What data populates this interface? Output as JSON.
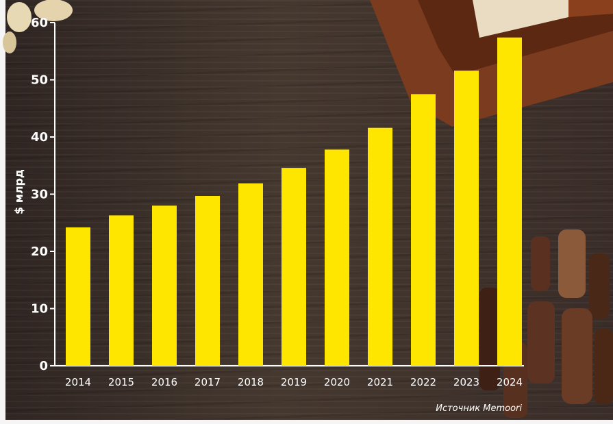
{
  "chart_data": {
    "type": "bar",
    "categories": [
      "2014",
      "2015",
      "2016",
      "2017",
      "2018",
      "2019",
      "2020",
      "2021",
      "2022",
      "2023",
      "2024"
    ],
    "values": [
      24.2,
      26.3,
      28.0,
      29.7,
      31.9,
      34.6,
      37.8,
      41.6,
      47.5,
      51.6,
      57.4
    ],
    "ylabel": "$ млрд",
    "xlabel": "",
    "ylim": [
      0,
      60
    ],
    "yticks": [
      "0",
      "10",
      "20",
      "30",
      "40",
      "50",
      "60"
    ],
    "grid": false,
    "bar_color": "#ffe600"
  },
  "source_note": "Источник Memoori",
  "colors": {
    "axis": "#ffffff",
    "text": "#ffffff",
    "background_wood": "#3b2f2b"
  }
}
